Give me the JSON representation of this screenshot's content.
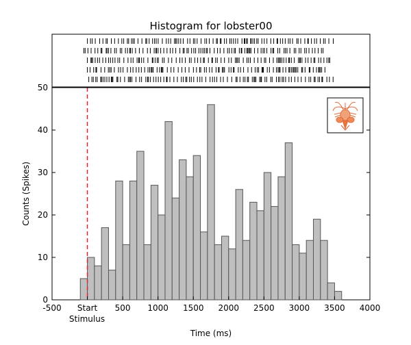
{
  "chart_data": {
    "type": "bar",
    "title": "Histogram for lobster00",
    "xlabel": "Time (ms)",
    "ylabel": "Counts (Spikes)",
    "xlim": [
      -500,
      4000
    ],
    "ylim": [
      0,
      50
    ],
    "x_ticks": [
      {
        "value": -500,
        "label": "-500"
      },
      {
        "value": 0,
        "label": "Start"
      },
      {
        "value": 500,
        "label": "500"
      },
      {
        "value": 1000,
        "label": "1000"
      },
      {
        "value": 1500,
        "label": "1500"
      },
      {
        "value": 2000,
        "label": "2000"
      },
      {
        "value": 2500,
        "label": "2500"
      },
      {
        "value": 3000,
        "label": "3000"
      },
      {
        "value": 3500,
        "label": "3500"
      },
      {
        "value": 4000,
        "label": "4000"
      }
    ],
    "x_sub_label": "Stimulus",
    "y_ticks": [
      0,
      10,
      20,
      30,
      40,
      50
    ],
    "bin_width": 100,
    "bins": [
      {
        "start": -100,
        "count": 5
      },
      {
        "start": 0,
        "count": 10
      },
      {
        "start": 100,
        "count": 8
      },
      {
        "start": 200,
        "count": 17
      },
      {
        "start": 300,
        "count": 7
      },
      {
        "start": 400,
        "count": 28
      },
      {
        "start": 500,
        "count": 13
      },
      {
        "start": 600,
        "count": 28
      },
      {
        "start": 700,
        "count": 35
      },
      {
        "start": 800,
        "count": 13
      },
      {
        "start": 900,
        "count": 27
      },
      {
        "start": 1000,
        "count": 20
      },
      {
        "start": 1100,
        "count": 42
      },
      {
        "start": 1200,
        "count": 24
      },
      {
        "start": 1300,
        "count": 33
      },
      {
        "start": 1400,
        "count": 29
      },
      {
        "start": 1500,
        "count": 34
      },
      {
        "start": 1600,
        "count": 16
      },
      {
        "start": 1700,
        "count": 46
      },
      {
        "start": 1800,
        "count": 13
      },
      {
        "start": 1900,
        "count": 15
      },
      {
        "start": 2000,
        "count": 12
      },
      {
        "start": 2100,
        "count": 26
      },
      {
        "start": 2200,
        "count": 14
      },
      {
        "start": 2300,
        "count": 23
      },
      {
        "start": 2400,
        "count": 21
      },
      {
        "start": 2500,
        "count": 30
      },
      {
        "start": 2600,
        "count": 22
      },
      {
        "start": 2700,
        "count": 29
      },
      {
        "start": 2800,
        "count": 37
      },
      {
        "start": 2900,
        "count": 13
      },
      {
        "start": 3000,
        "count": 11
      },
      {
        "start": 3100,
        "count": 14
      },
      {
        "start": 3200,
        "count": 19
      },
      {
        "start": 3300,
        "count": 14
      },
      {
        "start": 3400,
        "count": 4
      },
      {
        "start": 3500,
        "count": 2
      }
    ],
    "stimulus_marker": {
      "x": 0
    },
    "raster": {
      "trials": 5,
      "spike_ranges": [
        [
          0,
          3500
        ],
        [
          -50,
          3350
        ],
        [
          0,
          3450
        ],
        [
          0,
          3400
        ],
        [
          20,
          3500
        ]
      ]
    },
    "grid": false,
    "legend": "none",
    "colors": {
      "bar_fill": "#bfbfbf",
      "bar_edge": "#555555",
      "stimulus_line": "#e3242b",
      "raster_ticks": "#000000",
      "axes": "#000000"
    },
    "inset_icon": "lobster-icon"
  }
}
